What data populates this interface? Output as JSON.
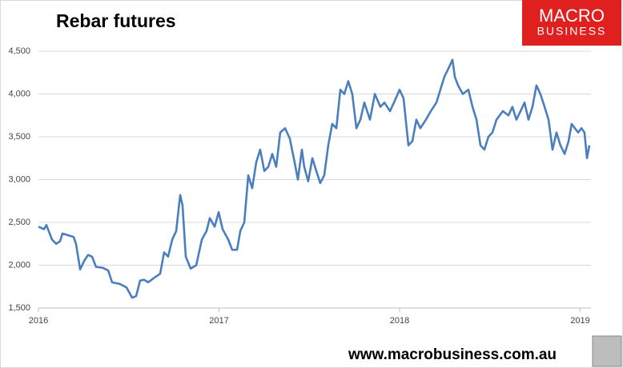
{
  "chart_data": {
    "type": "line",
    "title": "Rebar futures",
    "x": [
      2016,
      2016.031,
      2016.044,
      2016.075,
      2016.098,
      2016.12,
      2016.133,
      2016.164,
      2016.195,
      2016.208,
      2016.231,
      2016.253,
      2016.275,
      2016.297,
      2016.319,
      2016.355,
      2016.386,
      2016.408,
      2016.452,
      2016.488,
      2016.519,
      2016.541,
      2016.563,
      2016.585,
      2016.608,
      2016.639,
      2016.674,
      2016.696,
      2016.718,
      2016.741,
      2016.763,
      2016.785,
      2016.798,
      2016.816,
      2016.843,
      2016.874,
      2016.905,
      2016.931,
      2016.949,
      2016.976,
      2016.998,
      2017.02,
      2017.051,
      2017.073,
      2017.1,
      2017.118,
      2017.14,
      2017.162,
      2017.184,
      2017.206,
      2017.228,
      2017.251,
      2017.273,
      2017.295,
      2017.317,
      2017.339,
      2017.366,
      2017.392,
      2017.419,
      2017.437,
      2017.459,
      2017.472,
      2017.494,
      2017.517,
      2017.539,
      2017.561,
      2017.583,
      2017.605,
      2017.627,
      2017.65,
      2017.672,
      2017.694,
      2017.716,
      2017.738,
      2017.761,
      2017.783,
      2017.805,
      2017.836,
      2017.863,
      2017.894,
      2017.916,
      2017.947,
      2017.969,
      2018.0,
      2018.022,
      2018.049,
      2018.071,
      2018.093,
      2018.115,
      2018.146,
      2018.173,
      2018.204,
      2018.226,
      2018.248,
      2018.271,
      2018.293,
      2018.306,
      2018.324,
      2018.35,
      2018.381,
      2018.404,
      2018.426,
      2018.448,
      2018.47,
      2018.492,
      2018.514,
      2018.537,
      2018.572,
      2018.603,
      2018.625,
      2018.647,
      2018.67,
      2018.692,
      2018.714,
      2018.736,
      2018.758,
      2018.78,
      2018.803,
      2018.825,
      2018.847,
      2018.869,
      2018.891,
      2018.914,
      2018.936,
      2018.953,
      2018.971,
      2018.989,
      2019.007,
      2019.024,
      2019.038,
      2019.051
    ],
    "series": [
      {
        "name": "Rebar futures",
        "color": "#4a7ebf",
        "values": [
          2450,
          2420,
          2470,
          2300,
          2250,
          2280,
          2370,
          2350,
          2330,
          2250,
          1950,
          2050,
          2120,
          2100,
          1980,
          1970,
          1940,
          1800,
          1780,
          1740,
          1620,
          1640,
          1820,
          1830,
          1800,
          1850,
          1900,
          2150,
          2100,
          2300,
          2400,
          2820,
          2700,
          2100,
          1960,
          2000,
          2300,
          2400,
          2550,
          2450,
          2620,
          2420,
          2300,
          2180,
          2180,
          2400,
          2500,
          3050,
          2900,
          3200,
          3350,
          3100,
          3150,
          3300,
          3150,
          3550,
          3600,
          3480,
          3200,
          3000,
          3350,
          3150,
          2980,
          3250,
          3100,
          2960,
          3050,
          3400,
          3650,
          3600,
          4050,
          4000,
          4150,
          4000,
          3600,
          3700,
          3900,
          3700,
          4000,
          3850,
          3900,
          3800,
          3900,
          4050,
          3950,
          3400,
          3450,
          3700,
          3600,
          3700,
          3800,
          3900,
          4050,
          4200,
          4300,
          4400,
          4200,
          4100,
          4000,
          4050,
          3850,
          3700,
          3400,
          3350,
          3500,
          3550,
          3700,
          3800,
          3750,
          3850,
          3700,
          3800,
          3900,
          3700,
          3850,
          4100,
          4000,
          3850,
          3700,
          3350,
          3550,
          3400,
          3300,
          3450,
          3650,
          3600,
          3550,
          3600,
          3550,
          3250,
          3400
        ]
      }
    ],
    "xlim": [
      2016,
      2019.06
    ],
    "xticks": [
      2016,
      2017,
      2018,
      2019
    ],
    "ylim": [
      1500,
      4500
    ],
    "yticks": [
      {
        "value": 1500,
        "label": "1,500"
      },
      {
        "value": 2000,
        "label": "2,000"
      },
      {
        "value": 2500,
        "label": "2,500"
      },
      {
        "value": 3000,
        "label": "3,000"
      },
      {
        "value": 3500,
        "label": "3,500"
      },
      {
        "value": 4000,
        "label": "4,000"
      },
      {
        "value": 4500,
        "label": "4,500"
      }
    ],
    "grid": true
  },
  "logo": {
    "line1": "MACRO",
    "line2": "BUSINESS"
  },
  "footer": "www.macrobusiness.com.au"
}
